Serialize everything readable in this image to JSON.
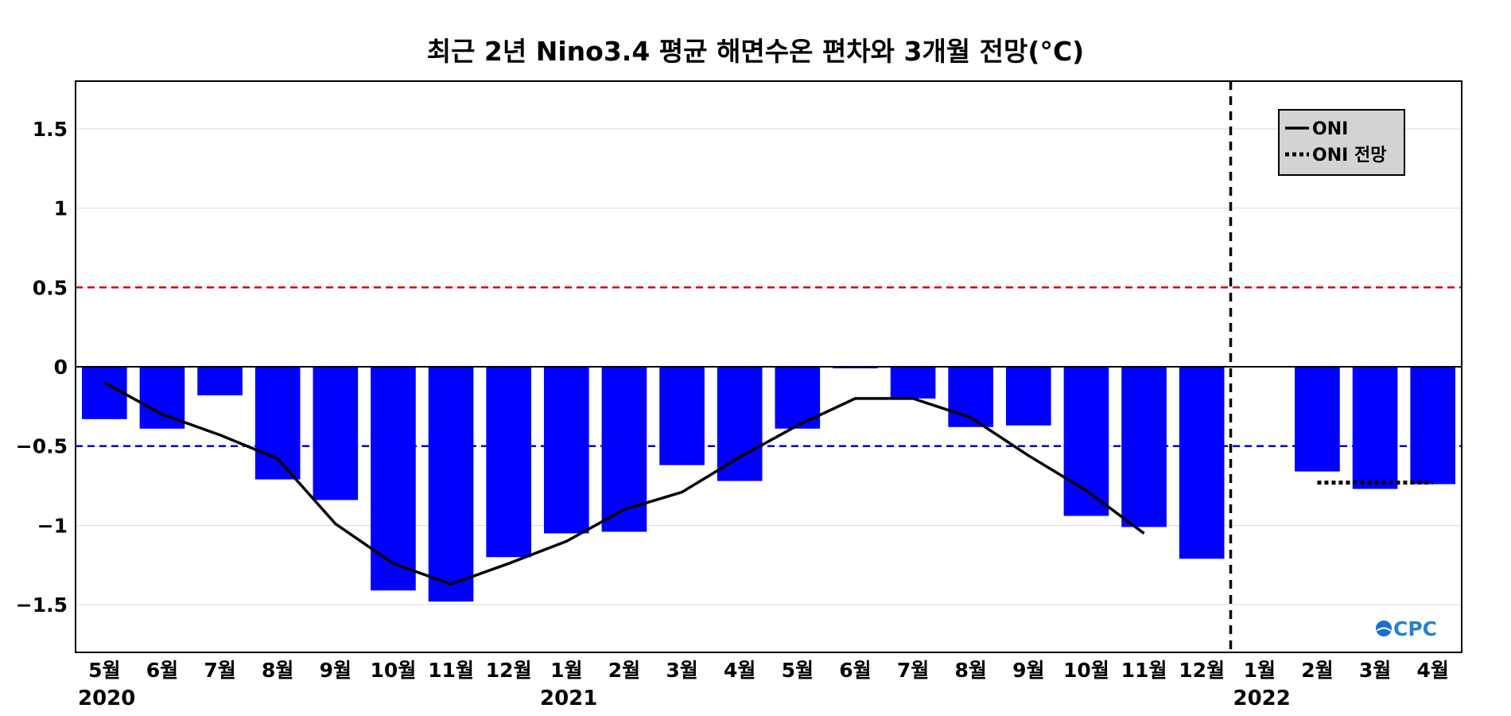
{
  "chart_data": {
    "type": "bar",
    "title": "최근 2년 Nino3.4 평균 해면수온 편차와 3개월 전망(°C)",
    "xlabel": "",
    "ylabel": "",
    "categories": [
      "5월",
      "6월",
      "7월",
      "8월",
      "9월",
      "10월",
      "11월",
      "12월",
      "1월",
      "2월",
      "3월",
      "4월",
      "5월",
      "6월",
      "7월",
      "8월",
      "9월",
      "10월",
      "11월",
      "12월",
      "1월",
      "2월",
      "3월",
      "4월"
    ],
    "year_labels": [
      {
        "index": 0,
        "label": "2020"
      },
      {
        "index": 8,
        "label": "2021"
      },
      {
        "index": 20,
        "label": "2022"
      }
    ],
    "ylim": [
      -1.8,
      1.8
    ],
    "yticks": [
      -1.5,
      -1,
      -0.5,
      0,
      0.5,
      1,
      1.5
    ],
    "ytick_labels": [
      "−1.5",
      "−1",
      "−0.5",
      "0",
      "0.5",
      "1",
      "1.5"
    ],
    "grid": true,
    "series": [
      {
        "kind": "bar",
        "color": "#0000ff",
        "values": [
          -0.33,
          -0.39,
          -0.18,
          -0.71,
          -0.84,
          -1.41,
          -1.48,
          -1.2,
          -1.05,
          -1.04,
          -0.62,
          -0.72,
          -0.39,
          -0.01,
          -0.2,
          -0.38,
          -0.37,
          -0.94,
          -1.01,
          -1.21,
          null,
          -0.66,
          -0.77,
          -0.74
        ]
      },
      {
        "name": "ONI",
        "kind": "line",
        "color": "#000000",
        "values": [
          -0.1,
          -0.3,
          -0.43,
          -0.58,
          -0.99,
          -1.24,
          -1.37,
          -1.24,
          -1.1,
          -0.9,
          -0.79,
          -0.57,
          -0.37,
          -0.2,
          -0.2,
          -0.32,
          -0.56,
          -0.78,
          -1.05,
          null,
          null,
          null,
          null,
          null
        ]
      },
      {
        "name": "ONI 전망",
        "kind": "dotted-line",
        "color": "#000000",
        "values": [
          null,
          null,
          null,
          null,
          null,
          null,
          null,
          null,
          null,
          null,
          null,
          null,
          null,
          null,
          null,
          null,
          null,
          null,
          null,
          null,
          null,
          -0.73,
          -0.73,
          -0.73
        ]
      }
    ],
    "reference_lines": [
      {
        "y": 0.5,
        "color": "#dd0000",
        "style": "dashed"
      },
      {
        "y": -0.5,
        "color": "#0000cc",
        "style": "dashed"
      }
    ],
    "divider": {
      "between": [
        19,
        20
      ],
      "color": "#000000",
      "style": "dashed"
    },
    "legend": {
      "placement": "top-right"
    },
    "watermark": "CPC"
  }
}
